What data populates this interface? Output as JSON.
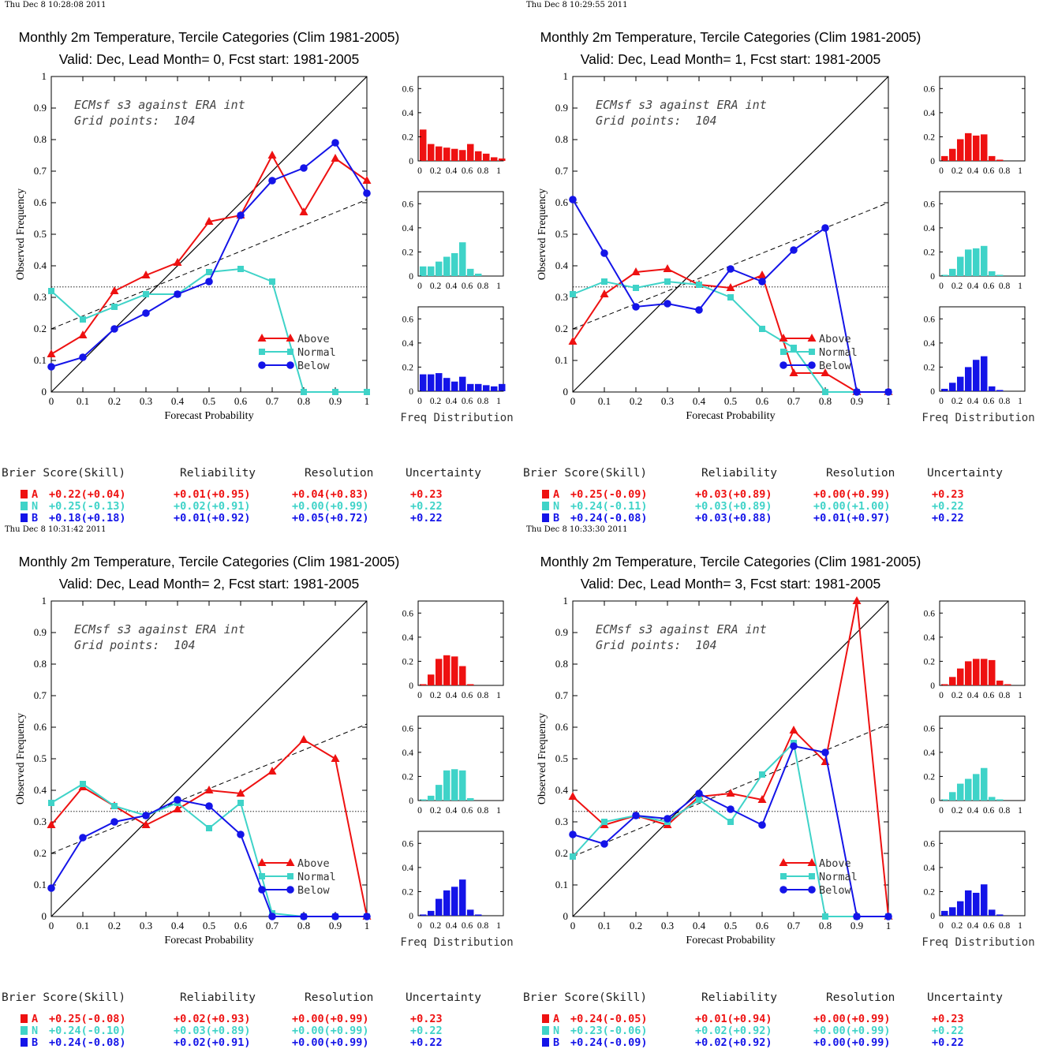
{
  "colors": {
    "above": "#ee1111",
    "normal": "#3fd3c8",
    "below": "#1414e8"
  },
  "labels": {
    "title1": "Monthly 2m Temperature, Tercile Categories (Clim 1981-2005)",
    "ylabel": "Observed Frequency",
    "xlabel": "Forecast Probability",
    "note1": "ECMsf s3 against ERA int",
    "note2": "Grid points:  104",
    "freq_label": "Freq Distribution",
    "legend": [
      "Above",
      "Normal",
      "Below"
    ],
    "bs_headers": [
      "Brier Score(Skill)",
      "Reliability",
      "Resolution",
      "Uncertainty"
    ],
    "bs_letters": [
      "A",
      "N",
      "B"
    ],
    "reliability_ticks": [
      "0",
      "0.1",
      "0.2",
      "0.3",
      "0.4",
      "0.5",
      "0.6",
      "0.7",
      "0.8",
      "0.9",
      "1"
    ],
    "hist_yticks": [
      "0",
      "0.2",
      "0.4",
      "0.6"
    ],
    "hist_xticks": [
      "0",
      "0.2",
      "0.4",
      "0.6",
      "0.8",
      "1"
    ]
  },
  "chart_data": [
    {
      "type": "line",
      "timestamp": "Thu Dec  8 10:28:08 2011",
      "subtitle": "Valid: Dec, Lead Month= 0, Fcst start: 1981-2005",
      "xlim": [
        0,
        1
      ],
      "ylim": [
        0,
        1
      ],
      "climatology": 0.333,
      "regression": [
        0.2,
        0.61
      ],
      "series": [
        {
          "name": "Above",
          "x": [
            0,
            0.1,
            0.2,
            0.3,
            0.4,
            0.5,
            0.6,
            0.7,
            0.8,
            0.9,
            1.0
          ],
          "y": [
            0.12,
            0.18,
            0.32,
            0.37,
            0.41,
            0.54,
            0.56,
            0.75,
            0.57,
            0.74,
            0.67
          ]
        },
        {
          "name": "Normal",
          "x": [
            0,
            0.1,
            0.2,
            0.3,
            0.4,
            0.5,
            0.6,
            0.7,
            0.8,
            0.9,
            1.0
          ],
          "y": [
            0.32,
            0.23,
            0.27,
            0.31,
            0.31,
            0.38,
            0.39,
            0.35,
            0,
            0,
            0
          ]
        },
        {
          "name": "Below",
          "x": [
            0,
            0.1,
            0.2,
            0.3,
            0.4,
            0.5,
            0.6,
            0.7,
            0.8,
            0.9,
            1.0
          ],
          "y": [
            0.08,
            0.11,
            0.2,
            0.25,
            0.31,
            0.35,
            0.56,
            0.67,
            0.71,
            0.79,
            0.63
          ]
        }
      ],
      "histograms": {
        "Above": [
          0.26,
          0.14,
          0.12,
          0.11,
          0.1,
          0.09,
          0.14,
          0.08,
          0.06,
          0.03,
          0.02
        ],
        "Normal": [
          0.08,
          0.08,
          0.12,
          0.16,
          0.19,
          0.28,
          0.06,
          0.02,
          0,
          0,
          0
        ],
        "Below": [
          0.14,
          0.14,
          0.15,
          0.11,
          0.08,
          0.12,
          0.06,
          0.06,
          0.05,
          0.04,
          0.06
        ]
      },
      "brier": {
        "A": [
          "+0.22(+0.04)",
          "+0.01(+0.95)",
          "+0.04(+0.83)",
          "+0.23"
        ],
        "N": [
          "+0.25(-0.13)",
          "+0.02(+0.91)",
          "+0.00(+0.99)",
          "+0.22"
        ],
        "B": [
          "+0.18(+0.18)",
          "+0.01(+0.92)",
          "+0.05(+0.72)",
          "+0.22"
        ]
      }
    },
    {
      "type": "line",
      "timestamp": "Thu Dec  8 10:29:55 2011",
      "subtitle": "Valid: Dec, Lead Month= 1, Fcst start: 1981-2005",
      "xlim": [
        0,
        1
      ],
      "ylim": [
        0,
        1
      ],
      "climatology": 0.333,
      "regression": [
        0.2,
        0.6
      ],
      "series": [
        {
          "name": "Above",
          "x": [
            0,
            0.1,
            0.2,
            0.3,
            0.4,
            0.5,
            0.6,
            0.7,
            0.8,
            0.9,
            1.0
          ],
          "y": [
            0.16,
            0.31,
            0.38,
            0.39,
            0.34,
            0.33,
            0.37,
            0.06,
            0.06,
            0,
            0
          ]
        },
        {
          "name": "Normal",
          "x": [
            0,
            0.1,
            0.2,
            0.3,
            0.4,
            0.5,
            0.6,
            0.7,
            0.8,
            0.9,
            1.0
          ],
          "y": [
            0.31,
            0.35,
            0.33,
            0.35,
            0.34,
            0.3,
            0.2,
            0.14,
            0,
            0,
            0
          ]
        },
        {
          "name": "Below",
          "x": [
            0,
            0.1,
            0.2,
            0.3,
            0.4,
            0.5,
            0.6,
            0.7,
            0.8,
            0.9,
            1.0
          ],
          "y": [
            0.61,
            0.44,
            0.27,
            0.28,
            0.26,
            0.39,
            0.35,
            0.45,
            0.52,
            0,
            0
          ]
        }
      ],
      "histograms": {
        "Above": [
          0.04,
          0.1,
          0.18,
          0.23,
          0.21,
          0.22,
          0.04,
          0.01,
          0,
          0,
          0
        ],
        "Normal": [
          0.01,
          0.06,
          0.16,
          0.22,
          0.23,
          0.25,
          0.04,
          0.01,
          0,
          0,
          0
        ],
        "Below": [
          0.02,
          0.07,
          0.12,
          0.2,
          0.26,
          0.29,
          0.04,
          0.01,
          0,
          0,
          0
        ]
      },
      "brier": {
        "A": [
          "+0.25(-0.09)",
          "+0.03(+0.89)",
          "+0.00(+0.99)",
          "+0.23"
        ],
        "N": [
          "+0.24(-0.11)",
          "+0.03(+0.89)",
          "+0.00(+1.00)",
          "+0.22"
        ],
        "B": [
          "+0.24(-0.08)",
          "+0.03(+0.88)",
          "+0.01(+0.97)",
          "+0.22"
        ]
      }
    },
    {
      "type": "line",
      "timestamp": "Thu Dec  8 10:31:42 2011",
      "subtitle": "Valid: Dec, Lead Month= 2, Fcst start: 1981-2005",
      "xlim": [
        0,
        1
      ],
      "ylim": [
        0,
        1
      ],
      "climatology": 0.333,
      "regression": [
        0.2,
        0.61
      ],
      "series": [
        {
          "name": "Above",
          "x": [
            0,
            0.1,
            0.2,
            0.3,
            0.4,
            0.5,
            0.6,
            0.7,
            0.8,
            0.9,
            1.0
          ],
          "y": [
            0.29,
            0.41,
            0.35,
            0.29,
            0.34,
            0.4,
            0.39,
            0.46,
            0.56,
            0.5,
            0
          ]
        },
        {
          "name": "Normal",
          "x": [
            0,
            0.1,
            0.2,
            0.3,
            0.4,
            0.5,
            0.6,
            0.7,
            0.8,
            0.9,
            1.0
          ],
          "y": [
            0.36,
            0.42,
            0.35,
            0.32,
            0.36,
            0.28,
            0.36,
            0.01,
            0,
            0,
            0
          ]
        },
        {
          "name": "Below",
          "x": [
            0,
            0.1,
            0.2,
            0.3,
            0.4,
            0.5,
            0.6,
            0.7,
            0.8,
            0.9,
            1.0
          ],
          "y": [
            0.09,
            0.25,
            0.3,
            0.32,
            0.37,
            0.35,
            0.26,
            0,
            0,
            0,
            0
          ]
        }
      ],
      "histograms": {
        "Above": [
          0.01,
          0.09,
          0.22,
          0.25,
          0.24,
          0.16,
          0.01,
          0,
          0,
          0,
          0
        ],
        "Normal": [
          0.01,
          0.04,
          0.13,
          0.25,
          0.26,
          0.25,
          0.02,
          0,
          0,
          0,
          0
        ],
        "Below": [
          0.01,
          0.04,
          0.14,
          0.21,
          0.24,
          0.3,
          0.05,
          0.01,
          0,
          0,
          0
        ]
      },
      "brier": {
        "A": [
          "+0.25(-0.08)",
          "+0.02(+0.93)",
          "+0.00(+0.99)",
          "+0.23"
        ],
        "N": [
          "+0.24(-0.10)",
          "+0.03(+0.89)",
          "+0.00(+0.99)",
          "+0.22"
        ],
        "B": [
          "+0.24(-0.08)",
          "+0.02(+0.91)",
          "+0.00(+0.99)",
          "+0.22"
        ]
      }
    },
    {
      "type": "line",
      "timestamp": "Thu Dec  8 10:33:30 2011",
      "subtitle": "Valid: Dec, Lead Month= 3, Fcst start: 1981-2005",
      "xlim": [
        0,
        1
      ],
      "ylim": [
        0,
        1
      ],
      "climatology": 0.333,
      "regression": [
        0.19,
        0.61
      ],
      "series": [
        {
          "name": "Above",
          "x": [
            0,
            0.1,
            0.2,
            0.3,
            0.4,
            0.5,
            0.6,
            0.7,
            0.8,
            0.9,
            1.0
          ],
          "y": [
            0.38,
            0.29,
            0.32,
            0.29,
            0.38,
            0.39,
            0.37,
            0.59,
            0.49,
            1.0,
            0
          ]
        },
        {
          "name": "Normal",
          "x": [
            0,
            0.1,
            0.2,
            0.3,
            0.4,
            0.5,
            0.6,
            0.7,
            0.8,
            0.9,
            1.0
          ],
          "y": [
            0.19,
            0.3,
            0.32,
            0.3,
            0.37,
            0.3,
            0.45,
            0.55,
            0,
            0,
            0
          ]
        },
        {
          "name": "Below",
          "x": [
            0,
            0.1,
            0.2,
            0.3,
            0.4,
            0.5,
            0.6,
            0.7,
            0.8,
            0.9,
            1.0
          ],
          "y": [
            0.26,
            0.23,
            0.32,
            0.31,
            0.39,
            0.34,
            0.29,
            0.54,
            0.52,
            0,
            0
          ]
        }
      ],
      "histograms": {
        "Above": [
          0.01,
          0.07,
          0.14,
          0.2,
          0.22,
          0.22,
          0.21,
          0.04,
          0.01,
          0,
          0
        ],
        "Normal": [
          0.01,
          0.07,
          0.14,
          0.18,
          0.22,
          0.27,
          0.03,
          0.01,
          0,
          0,
          0
        ],
        "Below": [
          0.04,
          0.07,
          0.12,
          0.21,
          0.19,
          0.26,
          0.05,
          0.01,
          0,
          0,
          0
        ]
      },
      "brier": {
        "A": [
          "+0.24(-0.05)",
          "+0.01(+0.94)",
          "+0.00(+0.99)",
          "+0.23"
        ],
        "N": [
          "+0.23(-0.06)",
          "+0.02(+0.92)",
          "+0.00(+0.99)",
          "+0.22"
        ],
        "B": [
          "+0.24(-0.09)",
          "+0.02(+0.92)",
          "+0.00(+0.99)",
          "+0.22"
        ]
      }
    }
  ]
}
